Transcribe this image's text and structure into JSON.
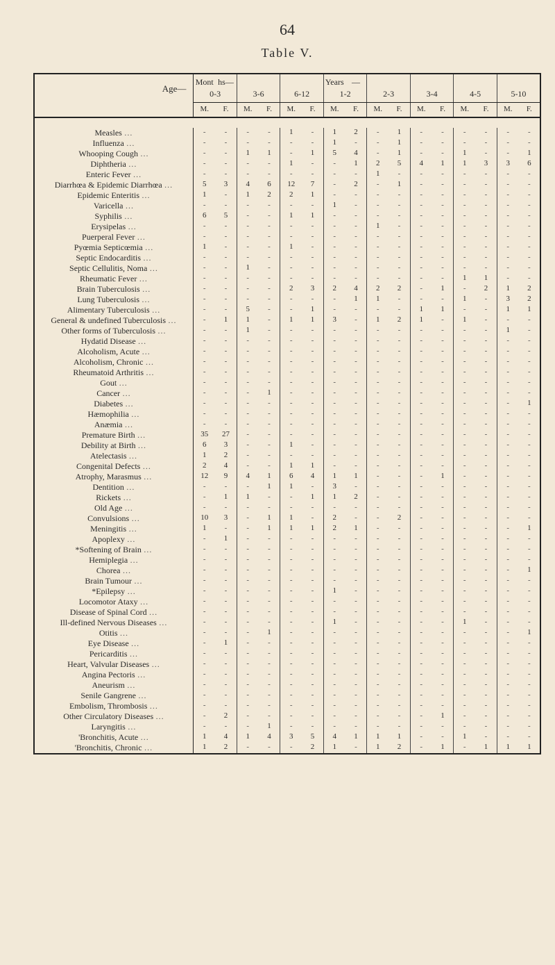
{
  "page": {
    "number": "64",
    "tableTitle": "Table V."
  },
  "style": {
    "background": "#f2e9d8",
    "text": "#2a2a2a",
    "rule": "#222222",
    "handwriting": "#5b3a1a",
    "dash": "-"
  },
  "header": {
    "ageLabel": "Age—",
    "spanLeft": {
      "top": "Mont",
      "bot": "0-3",
      "sub": "hs—"
    },
    "groups": [
      {
        "label": "0-3",
        "overL": "Mont",
        "overR": "hs—"
      },
      {
        "label": "3-6"
      },
      {
        "label": "6-12"
      },
      {
        "label": "1-2",
        "overL": "Years",
        "overR": "—"
      },
      {
        "label": "2-3"
      },
      {
        "label": "3-4"
      },
      {
        "label": "4-5"
      },
      {
        "label": "5-10"
      }
    ],
    "mf": [
      "M.",
      "F."
    ]
  },
  "rows": [
    {
      "name": "Measles",
      "v": [
        "-",
        "-",
        "-",
        "-",
        "1",
        "-",
        "1",
        "2",
        "-",
        "1",
        "-",
        "-",
        "-",
        "-",
        "-",
        "-"
      ]
    },
    {
      "name": "Influenza",
      "v": [
        "-",
        "-",
        "-",
        "-",
        "-",
        "-",
        "1",
        "-",
        "-",
        "1",
        "-",
        "-",
        "-",
        "-",
        "-",
        "-"
      ]
    },
    {
      "name": "Whooping Cough",
      "v": [
        "-",
        "-",
        "1",
        "1",
        "-",
        "1",
        "5",
        "4",
        "-",
        "1",
        "-",
        "-",
        "1",
        "-",
        "-",
        "1"
      ]
    },
    {
      "name": "Diphtheria",
      "v": [
        "-",
        "-",
        "-",
        "-",
        "1",
        "-",
        "-",
        "1",
        "2",
        "5",
        "4",
        "1",
        "1",
        "3",
        "3",
        "6"
      ]
    },
    {
      "name": "Enteric Fever",
      "v": [
        "-",
        "-",
        "-",
        "-",
        "-",
        "-",
        "-",
        "-",
        "1",
        "-",
        "-",
        "-",
        "-",
        "-",
        "-",
        "-"
      ]
    },
    {
      "name": "Diarrhœa & Epidemic Diarrhœa",
      "brace": true,
      "v": [
        "5",
        "3",
        "4",
        "6",
        "12",
        "7",
        "-",
        "2",
        "-",
        "1",
        "-",
        "-",
        "-",
        "-",
        "-",
        "-"
      ]
    },
    {
      "name": "Epidemic Enteritis",
      "v": [
        "1",
        "-",
        "1",
        "2",
        "2",
        "1",
        "-",
        "-",
        "-",
        "-",
        "-",
        "-",
        "-",
        "-",
        "-",
        "-"
      ]
    },
    {
      "name": "Varicella",
      "v": [
        "-",
        "-",
        "-",
        "-",
        "-",
        "-",
        "1",
        "-",
        "-",
        "-",
        "-",
        "-",
        "-",
        "-",
        "-",
        "-"
      ]
    },
    {
      "name": "Syphilis",
      "v": [
        "6",
        "5",
        "-",
        "-",
        "1",
        "1",
        "-",
        "-",
        "-",
        "-",
        "-",
        "-",
        "-",
        "-",
        "-",
        "-"
      ]
    },
    {
      "name": "Erysipelas",
      "v": [
        "-",
        "-",
        "-",
        "-",
        "-",
        "-",
        "-",
        "-",
        "1",
        "-",
        "-",
        "-",
        "-",
        "-",
        "-",
        "-"
      ]
    },
    {
      "name": "Puerperal Fever",
      "v": [
        "-",
        "-",
        "-",
        "-",
        "-",
        "-",
        "-",
        "-",
        "-",
        "-",
        "-",
        "-",
        "-",
        "-",
        "-",
        "-"
      ]
    },
    {
      "name": "Pyœmia Septicœmia",
      "v": [
        "1",
        "-",
        "-",
        "-",
        "1",
        "-",
        "-",
        "-",
        "-",
        "-",
        "-",
        "-",
        "-",
        "-",
        "-",
        "-"
      ]
    },
    {
      "name": "Septic Endocarditis",
      "v": [
        "-",
        "-",
        "-",
        "-",
        "-",
        "-",
        "-",
        "-",
        "-",
        "-",
        "-",
        "-",
        "-",
        "-",
        "-",
        "-"
      ]
    },
    {
      "name": "Septic Cellulitis, Noma",
      "v": [
        "-",
        "-",
        "1",
        "-",
        "-",
        "-",
        "-",
        "-",
        "-",
        "-",
        "-",
        "-",
        "-",
        "-",
        "-",
        "-"
      ]
    },
    {
      "name": "Rheumatic Fever",
      "v": [
        "-",
        "-",
        "-",
        "-",
        "-",
        "-",
        "-",
        "-",
        "-",
        "-",
        "-",
        "-",
        "1",
        "1",
        "-",
        "-"
      ]
    },
    {
      "name": "Brain Tuberculosis",
      "v": [
        "-",
        "-",
        "-",
        "-",
        "2",
        "3",
        "2",
        "4",
        "2",
        "2",
        "-",
        "1",
        "-",
        "2",
        "1",
        "2"
      ]
    },
    {
      "name": "Lung Tuberculosis",
      "v": [
        "-",
        "-",
        "-",
        "-",
        "-",
        "-",
        "-",
        "1",
        "1",
        "-",
        "-",
        "-",
        "1",
        "-",
        "3",
        "2"
      ]
    },
    {
      "name": "Alimentary Tuberculosis",
      "v": [
        "-",
        "-",
        "5",
        "-",
        "-",
        "1",
        "-",
        "-",
        "-",
        "-",
        "1",
        "1",
        "-",
        "-",
        "1",
        "1"
      ]
    },
    {
      "name": "General & undefined Tuberculosis",
      "v": [
        "-",
        "1",
        "1",
        "-",
        "1",
        "1",
        "3",
        "-",
        "1",
        "2",
        "1",
        "-",
        "1",
        "-",
        "-",
        "-"
      ]
    },
    {
      "name": "Other forms of Tuberculosis",
      "v": [
        "-",
        "-",
        "1",
        "-",
        "-",
        "-",
        "-",
        "-",
        "-",
        "-",
        "-",
        "-",
        "-",
        "-",
        "1",
        "-"
      ]
    },
    {
      "name": "Hydatid Disease",
      "v": [
        "-",
        "-",
        "-",
        "-",
        "-",
        "-",
        "-",
        "-",
        "-",
        "-",
        "-",
        "-",
        "-",
        "-",
        "-",
        "-"
      ]
    },
    {
      "name": "Alcoholism, Acute",
      "v": [
        "-",
        "-",
        "-",
        "-",
        "-",
        "-",
        "-",
        "-",
        "-",
        "-",
        "-",
        "-",
        "-",
        "-",
        "-",
        "-"
      ]
    },
    {
      "name": "Alcoholism, Chronic",
      "v": [
        "-",
        "-",
        "-",
        "-",
        "-",
        "-",
        "-",
        "-",
        "-",
        "-",
        "-",
        "-",
        "-",
        "-",
        "-",
        "-"
      ]
    },
    {
      "name": "Rheumatoid Arthritis",
      "v": [
        "-",
        "-",
        "-",
        "-",
        "-",
        "-",
        "-",
        "-",
        "-",
        "-",
        "-",
        "-",
        "-",
        "-",
        "-",
        "-"
      ]
    },
    {
      "name": "Gout",
      "v": [
        "-",
        "-",
        "-",
        "-",
        "-",
        "-",
        "-",
        "-",
        "-",
        "-",
        "-",
        "-",
        "-",
        "-",
        "-",
        "-"
      ]
    },
    {
      "name": "Cancer",
      "v": [
        "-",
        "-",
        "-",
        "1",
        "-",
        "-",
        "-",
        "-",
        "-",
        "-",
        "-",
        "-",
        "-",
        "-",
        "-",
        "-"
      ]
    },
    {
      "name": "Diabetes",
      "v": [
        "-",
        "-",
        "-",
        "-",
        "-",
        "-",
        "-",
        "-",
        "-",
        "-",
        "-",
        "-",
        "-",
        "-",
        "-",
        "1"
      ]
    },
    {
      "name": "Hæmophilia",
      "v": [
        "-",
        "-",
        "-",
        "-",
        "-",
        "-",
        "-",
        "-",
        "-",
        "-",
        "-",
        "-",
        "-",
        "-",
        "-",
        "-"
      ]
    },
    {
      "name": "Anæmia",
      "v": [
        "-",
        "-",
        "-",
        "-",
        "-",
        "-",
        "-",
        "-",
        "-",
        "-",
        "-",
        "-",
        "-",
        "-",
        "-",
        "-"
      ]
    },
    {
      "name": "Premature Birth",
      "v": [
        "35",
        "27",
        "-",
        "-",
        "-",
        "-",
        "-",
        "-",
        "-",
        "-",
        "-",
        "-",
        "-",
        "-",
        "-",
        "-"
      ]
    },
    {
      "name": "Debility at Birth",
      "v": [
        "6",
        "3",
        "-",
        "-",
        "1",
        "-",
        "-",
        "-",
        "-",
        "-",
        "-",
        "-",
        "-",
        "-",
        "-",
        "-"
      ]
    },
    {
      "name": "Atelectasis",
      "v": [
        "1",
        "2",
        "-",
        "-",
        "-",
        "-",
        "-",
        "-",
        "-",
        "-",
        "-",
        "-",
        "-",
        "-",
        "-",
        "-"
      ]
    },
    {
      "name": "Congenital Defects",
      "v": [
        "2",
        "4",
        "-",
        "-",
        "1",
        "1",
        "-",
        "-",
        "-",
        "-",
        "-",
        "-",
        "-",
        "-",
        "-",
        "-"
      ]
    },
    {
      "name": "Atrophy, Marasmus",
      "v": [
        "12",
        "9",
        "4",
        "1",
        "6",
        "4",
        "1",
        "1",
        "-",
        "-",
        "-",
        "1",
        "-",
        "-",
        "-",
        "-"
      ]
    },
    {
      "name": "Dentition",
      "v": [
        "-",
        "-",
        "-",
        "1",
        "1",
        "-",
        "3",
        "-",
        "-",
        "-",
        "-",
        "-",
        "-",
        "-",
        "-",
        "-"
      ]
    },
    {
      "name": "Rickets",
      "v": [
        "-",
        "1",
        "1",
        "-",
        "-",
        "1",
        "1",
        "2",
        "-",
        "-",
        "-",
        "-",
        "-",
        "-",
        "-",
        "-"
      ]
    },
    {
      "name": "Old Age",
      "v": [
        "-",
        "-",
        "-",
        "-",
        "-",
        "-",
        "-",
        "-",
        "-",
        "-",
        "-",
        "-",
        "-",
        "-",
        "-",
        "-"
      ]
    },
    {
      "name": "Convulsions",
      "v": [
        "10",
        "3",
        "-",
        "1",
        "1",
        "-",
        "2",
        "-",
        "-",
        "2",
        "-",
        "-",
        "-",
        "-",
        "-",
        "-"
      ]
    },
    {
      "name": "Meningitis",
      "v": [
        "1",
        "-",
        "-",
        "1",
        "1",
        "1",
        "2",
        "1",
        "-",
        "-",
        "-",
        "-",
        "-",
        "-",
        "-",
        "1"
      ]
    },
    {
      "name": "Apoplexy",
      "v": [
        "-",
        "1",
        "-",
        "-",
        "-",
        "-",
        "-",
        "-",
        "-",
        "-",
        "-",
        "-",
        "-",
        "-",
        "-",
        "-"
      ]
    },
    {
      "name": "Softening of Brain",
      "mark": "*",
      "v": [
        "-",
        "-",
        "-",
        "-",
        "-",
        "-",
        "-",
        "-",
        "-",
        "-",
        "-",
        "-",
        "-",
        "-",
        "-",
        "-"
      ]
    },
    {
      "name": "Hemiplegia",
      "v": [
        "-",
        "-",
        "-",
        "-",
        "-",
        "-",
        "-",
        "-",
        "-",
        "-",
        "-",
        "-",
        "-",
        "-",
        "-",
        "-"
      ]
    },
    {
      "name": "Chorea",
      "v": [
        "-",
        "-",
        "-",
        "-",
        "-",
        "-",
        "-",
        "-",
        "-",
        "-",
        "-",
        "-",
        "-",
        "-",
        "-",
        "1"
      ]
    },
    {
      "name": "Brain Tumour",
      "v": [
        "-",
        "-",
        "-",
        "-",
        "-",
        "-",
        "-",
        "-",
        "-",
        "-",
        "-",
        "-",
        "-",
        "-",
        "-",
        "-"
      ]
    },
    {
      "name": "Epilepsy",
      "mark": "*",
      "v": [
        "-",
        "-",
        "-",
        "-",
        "-",
        "-",
        "1",
        "-",
        "-",
        "-",
        "-",
        "-",
        "-",
        "-",
        "-",
        "-"
      ]
    },
    {
      "name": "Locomotor Ataxy",
      "v": [
        "-",
        "-",
        "-",
        "-",
        "-",
        "-",
        "-",
        "-",
        "-",
        "-",
        "-",
        "-",
        "-",
        "-",
        "-",
        "-"
      ]
    },
    {
      "name": "Disease of Spinal Cord",
      "v": [
        "-",
        "-",
        "-",
        "-",
        "-",
        "-",
        "-",
        "-",
        "-",
        "-",
        "-",
        "-",
        "-",
        "-",
        "-",
        "-"
      ]
    },
    {
      "name": "Ill-defined Nervous Diseases",
      "v": [
        "-",
        "-",
        "-",
        "-",
        "-",
        "-",
        "1",
        "-",
        "-",
        "-",
        "-",
        "-",
        "1",
        "-",
        "-",
        "-"
      ]
    },
    {
      "name": "Otitis",
      "v": [
        "-",
        "-",
        "-",
        "1",
        "-",
        "-",
        "-",
        "-",
        "-",
        "-",
        "-",
        "-",
        "-",
        "-",
        "-",
        "1"
      ]
    },
    {
      "name": "Eye Disease",
      "v": [
        "-",
        "1",
        "-",
        "-",
        "-",
        "-",
        "-",
        "-",
        "-",
        "-",
        "-",
        "-",
        "-",
        "-",
        "-",
        "-"
      ]
    },
    {
      "name": "Pericarditis",
      "v": [
        "-",
        "-",
        "-",
        "-",
        "-",
        "-",
        "-",
        "-",
        "-",
        "-",
        "-",
        "-",
        "-",
        "-",
        "-",
        "-"
      ]
    },
    {
      "name": "Heart, Valvular Diseases",
      "v": [
        "-",
        "-",
        "-",
        "-",
        "-",
        "-",
        "-",
        "-",
        "-",
        "-",
        "-",
        "-",
        "-",
        "-",
        "-",
        "-"
      ]
    },
    {
      "name": "Angina Pectoris",
      "v": [
        "-",
        "-",
        "-",
        "-",
        "-",
        "-",
        "-",
        "-",
        "-",
        "-",
        "-",
        "-",
        "-",
        "-",
        "-",
        "-"
      ]
    },
    {
      "name": "Aneurism",
      "v": [
        "-",
        "-",
        "-",
        "-",
        "-",
        "-",
        "-",
        "-",
        "-",
        "-",
        "-",
        "-",
        "-",
        "-",
        "-",
        "-"
      ]
    },
    {
      "name": "Senile Gangrene",
      "v": [
        "-",
        "-",
        "-",
        "-",
        "-",
        "-",
        "-",
        "-",
        "-",
        "-",
        "-",
        "-",
        "-",
        "-",
        "-",
        "-"
      ]
    },
    {
      "name": "Embolism, Thrombosis",
      "v": [
        "-",
        "-",
        "-",
        "-",
        "-",
        "-",
        "-",
        "-",
        "-",
        "-",
        "-",
        "-",
        "-",
        "-",
        "-",
        "-"
      ]
    },
    {
      "name": "Other Circulatory Diseases",
      "v": [
        "-",
        "2",
        "-",
        "-",
        "-",
        "-",
        "-",
        "-",
        "-",
        "-",
        "-",
        "1",
        "-",
        "-",
        "-",
        "-"
      ]
    },
    {
      "name": "Laryngitis",
      "v": [
        "-",
        "-",
        "-",
        "1",
        "-",
        "-",
        "-",
        "-",
        "-",
        "-",
        "-",
        "-",
        "-",
        "-",
        "-",
        "-"
      ]
    },
    {
      "name": "Bronchitis, Acute",
      "mark": "'",
      "v": [
        "1",
        "4",
        "1",
        "4",
        "3",
        "5",
        "4",
        "1",
        "1",
        "1",
        "-",
        "-",
        "1",
        "-",
        "-",
        "-"
      ]
    },
    {
      "name": "Bronchitis, Chronic",
      "mark": "'",
      "v": [
        "1",
        "2",
        "-",
        "-",
        "-",
        "2",
        "1",
        "-",
        "1",
        "2",
        "-",
        "1",
        "-",
        "1",
        "1",
        "1"
      ]
    }
  ]
}
